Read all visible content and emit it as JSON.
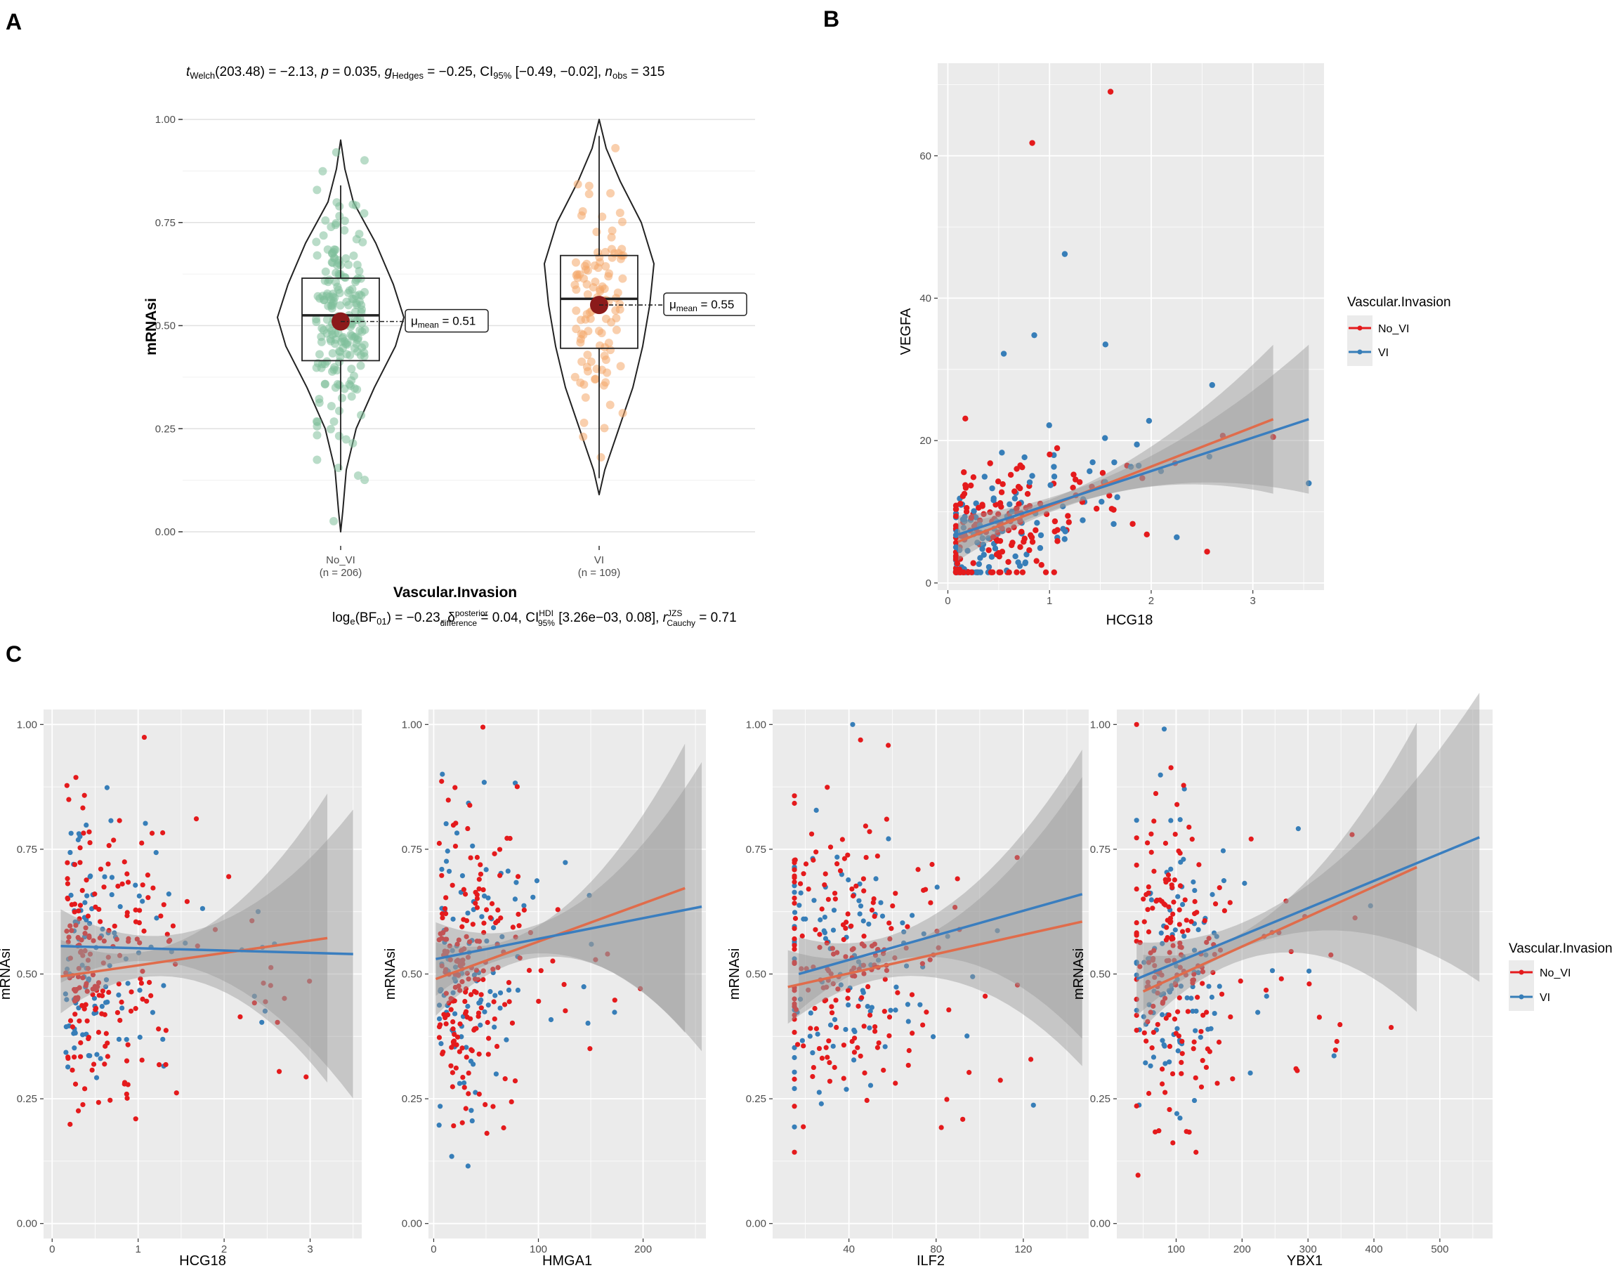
{
  "panels": {
    "a": "A",
    "b": "B",
    "c": "C"
  },
  "colors": {
    "no_vi": "#e41a1c",
    "vi": "#377eb8",
    "no_vi_line": "#e06c4b",
    "vi_line": "#3a7ebf",
    "violin_no_vi": "#7fbf9b",
    "violin_vi": "#f4a86a",
    "mean": "#8b1a1a",
    "panel_bg": "#ebebeb"
  },
  "legend": {
    "title": "Vascular.Invasion",
    "items": [
      {
        "label": "No_VI",
        "color": "#e41a1c"
      },
      {
        "label": "VI",
        "color": "#377eb8"
      }
    ]
  },
  "chart_data": [
    {
      "id": "A",
      "type": "violin",
      "subtitle_top": "t_Welch(203.48) = −2.13, p = 0.035, g_Hedges = −0.25, CI95% [−0.49, −0.02], n_obs = 315",
      "subtitle_bottom": "log_e(BF01) = −0.23, δ_difference^posterior = 0.04, CI95%^HDI [3.26e−03, 0.08], r_Cauchy^JZS = 0.71",
      "top_stat": {
        "t": "t",
        "t_sub": "Welch",
        "t_val": "(203.48) = −2.13, ",
        "p": "p",
        "p_val": " = 0.035, ",
        "g": "g",
        "g_sub": "Hedges",
        "g_val": " = −0.25, CI",
        "ci_sub": "95%",
        "ci_val": " [−0.49, −0.02], ",
        "n": "n",
        "n_sub": "obs",
        "n_val": " = 315"
      },
      "bottom_stat": {
        "p1": "log",
        "p1_sub": "e",
        "p2": "(BF",
        "p2_sub": "01",
        "p3": ") = −0.23, δ",
        "d_sup": "posterior",
        "d_sub": "difference",
        "p4": " = 0.04, CI",
        "ci_sup": "HDI",
        "ci_sub": "95%",
        "p5": " [3.26e−03, 0.08], ",
        "r": "r",
        "r_sup": "JZS",
        "r_sub": "Cauchy",
        "p6": " = 0.71"
      },
      "xlabel": "Vascular.Invasion",
      "ylabel": "mRNAsi",
      "ylim": [
        0,
        1
      ],
      "yticks": [
        "0.00",
        "0.25",
        "0.50",
        "0.75",
        "1.00"
      ],
      "groups": [
        {
          "name": "No_VI",
          "n_label": "(n = 206)",
          "mean": 0.51,
          "mean_label": "0.51",
          "q1": 0.415,
          "median": 0.525,
          "q3": 0.615,
          "whisker_low": 0.15,
          "whisker_high": 0.84,
          "min": 0.0,
          "max": 0.95
        },
        {
          "name": "VI",
          "n_label": "(n = 109)",
          "mean": 0.55,
          "mean_label": "0.55",
          "q1": 0.445,
          "median": 0.565,
          "q3": 0.67,
          "whisker_low": 0.13,
          "whisker_high": 0.96,
          "min": 0.09,
          "max": 1.0
        }
      ],
      "mean_prefix": "μ",
      "mean_sub": "mean"
    },
    {
      "id": "B",
      "type": "scatter",
      "xlabel": "HCG18",
      "ylabel": "VEGFA",
      "xlim": [
        -0.1,
        3.7
      ],
      "ylim": [
        -1,
        73
      ],
      "xticks": [
        0,
        1,
        2,
        3
      ],
      "yticks": [
        0,
        20,
        40,
        60
      ],
      "series": [
        {
          "name": "No_VI",
          "fit": {
            "x0": 0.1,
            "x1": 3.2,
            "y0": 5.8,
            "y1": 23.0
          }
        },
        {
          "name": "VI",
          "fit": {
            "x0": 0.1,
            "x1": 3.55,
            "y0": 6.8,
            "y1": 23.0
          }
        }
      ],
      "outliers": [
        {
          "x": 1.6,
          "y": 69.0,
          "s": "No_VI"
        },
        {
          "x": 0.83,
          "y": 61.8,
          "s": "No_VI"
        },
        {
          "x": 1.15,
          "y": 46.2,
          "s": "VI"
        },
        {
          "x": 0.85,
          "y": 34.8,
          "s": "VI"
        },
        {
          "x": 1.55,
          "y": 33.5,
          "s": "VI"
        },
        {
          "x": 0.55,
          "y": 32.2,
          "s": "VI"
        },
        {
          "x": 2.6,
          "y": 27.8,
          "s": "VI"
        },
        {
          "x": 3.55,
          "y": 14.0,
          "s": "VI"
        },
        {
          "x": 2.55,
          "y": 4.4,
          "s": "No_VI"
        },
        {
          "x": 3.2,
          "y": 20.5,
          "s": "No_VI"
        }
      ]
    },
    {
      "id": "C1",
      "type": "scatter",
      "xlabel": "HCG18",
      "ylabel": "mRNAsi",
      "xlim": [
        -0.1,
        3.6
      ],
      "ylim": [
        -0.03,
        1.03
      ],
      "xticks": [
        0,
        1,
        2,
        3
      ],
      "yticks": [
        "0.00",
        "0.25",
        "0.50",
        "0.75",
        "1.00"
      ],
      "series": [
        {
          "name": "No_VI",
          "fit": {
            "x0": 0.1,
            "x1": 3.2,
            "y0": 0.495,
            "y1": 0.572
          }
        },
        {
          "name": "VI",
          "fit": {
            "x0": 0.1,
            "x1": 3.5,
            "y0": 0.556,
            "y1": 0.54
          }
        }
      ]
    },
    {
      "id": "C2",
      "type": "scatter",
      "xlabel": "HMGA1",
      "ylabel": "mRNAsi",
      "xlim": [
        -5,
        260
      ],
      "ylim": [
        -0.03,
        1.03
      ],
      "xticks": [
        0,
        100,
        200
      ],
      "yticks": [
        "0.00",
        "0.25",
        "0.50",
        "0.75",
        "1.00"
      ],
      "series": [
        {
          "name": "No_VI",
          "fit": {
            "x0": 2,
            "x1": 240,
            "y0": 0.49,
            "y1": 0.672
          }
        },
        {
          "name": "VI",
          "fit": {
            "x0": 2,
            "x1": 256,
            "y0": 0.53,
            "y1": 0.635
          }
        }
      ]
    },
    {
      "id": "C3",
      "type": "scatter",
      "xlabel": "ILF2",
      "ylabel": "mRNAsi",
      "xlim": [
        5,
        150
      ],
      "ylim": [
        -0.03,
        1.03
      ],
      "xticks": [
        40,
        80,
        120
      ],
      "yticks": [
        "0.00",
        "0.25",
        "0.50",
        "0.75",
        "1.00"
      ],
      "series": [
        {
          "name": "No_VI",
          "fit": {
            "x0": 12,
            "x1": 147,
            "y0": 0.474,
            "y1": 0.605
          }
        },
        {
          "name": "VI",
          "fit": {
            "x0": 17,
            "x1": 147,
            "y0": 0.5,
            "y1": 0.66
          }
        }
      ]
    },
    {
      "id": "C4",
      "type": "scatter",
      "xlabel": "YBX1",
      "ylabel": "mRNAsi",
      "xlim": [
        10,
        580
      ],
      "ylim": [
        -0.03,
        1.03
      ],
      "xticks": [
        100,
        200,
        300,
        400,
        500
      ],
      "yticks": [
        "0.00",
        "0.25",
        "0.50",
        "0.75",
        "1.00"
      ],
      "series": [
        {
          "name": "No_VI",
          "fit": {
            "x0": 50,
            "x1": 465,
            "y0": 0.465,
            "y1": 0.714
          }
        },
        {
          "name": "VI",
          "fit": {
            "x0": 40,
            "x1": 560,
            "y0": 0.49,
            "y1": 0.774
          }
        }
      ]
    }
  ]
}
